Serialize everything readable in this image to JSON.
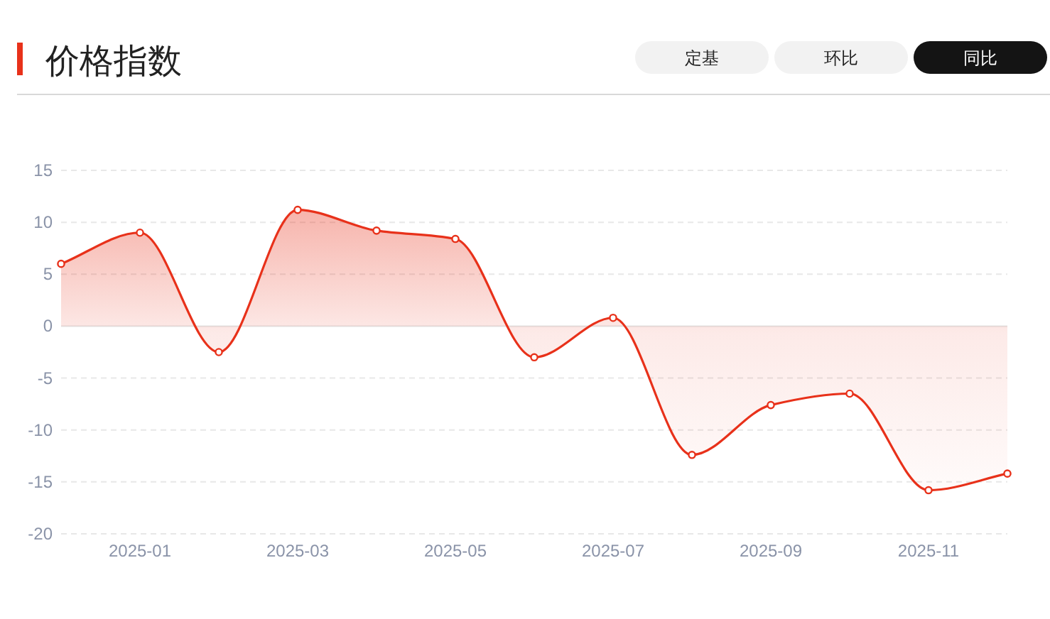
{
  "chart_data": {
    "type": "area",
    "title": "价格指数",
    "annotations": [
      "定基",
      "环比",
      "同比"
    ],
    "categories": [
      null,
      "2025-01",
      null,
      "2025-03",
      null,
      "2025-05",
      null,
      "2025-07",
      null,
      "2025-09",
      null,
      "2025-11",
      null
    ],
    "series": [
      {
        "color": "#e8311a",
        "values": [
          6.0,
          9.0,
          -2.5,
          11.2,
          9.2,
          8.4,
          -3.0,
          0.8,
          -12.4,
          -7.6,
          -6.5,
          -15.8,
          -14.2
        ]
      }
    ],
    "ylim": [
      -20,
      15
    ],
    "yticks": [
      -20,
      -15,
      -10,
      -5,
      0,
      5,
      10,
      15
    ],
    "grid": "y",
    "marker": "circle",
    "line_style": "solid"
  }
}
